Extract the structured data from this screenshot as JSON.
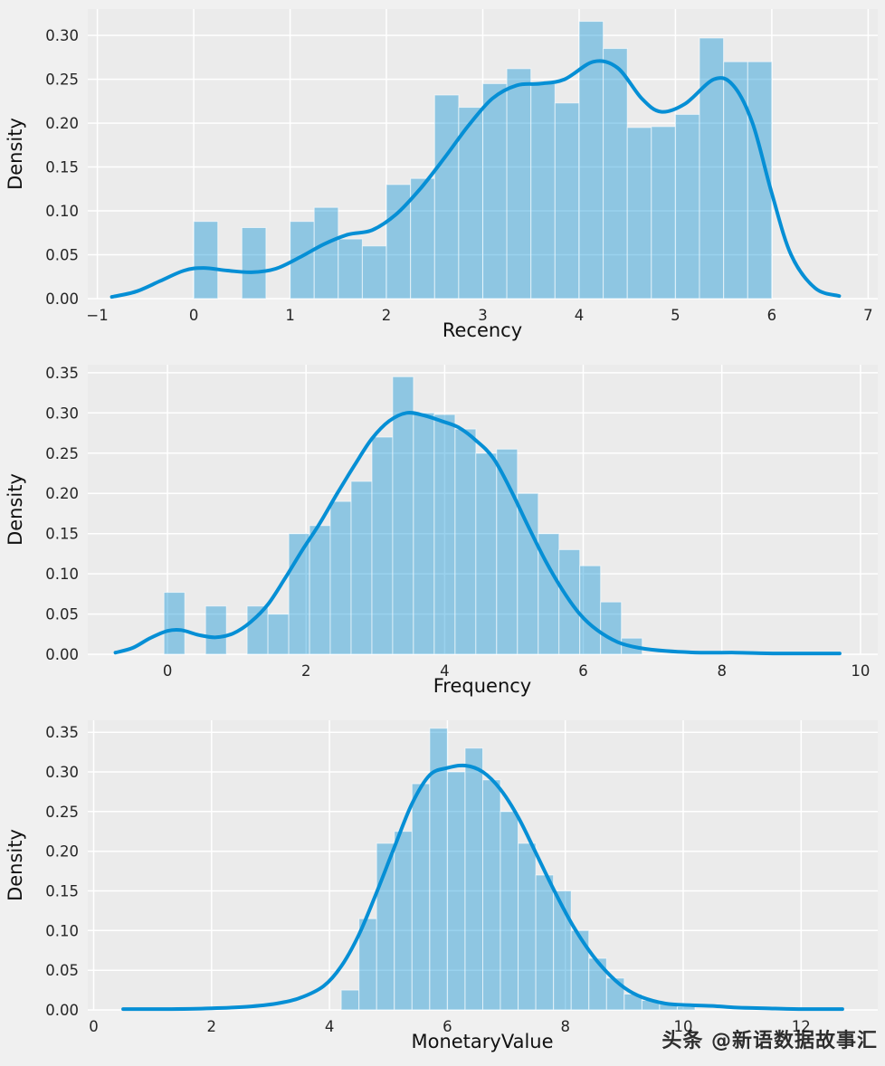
{
  "figure": {
    "bg": "#f0f0f0",
    "plot_bg": "#ebebeb",
    "grid_color": "#ffffff",
    "bar_color": "rgba(3,143,213,0.40)",
    "bar_edge": "rgba(255,255,255,0.6)",
    "line_color": "#068fd5",
    "tick_color": "#262626"
  },
  "watermark": {
    "text": "头条 @新语数据故事汇"
  },
  "chart_data": [
    {
      "type": "histogram (bar) + kde (line)",
      "title": "",
      "xlabel": "Recency",
      "ylabel": "Density",
      "xlim": [
        -1.1,
        7.1
      ],
      "ylim": [
        0,
        0.33
      ],
      "grid": true,
      "xticks": [
        -1,
        0,
        1,
        2,
        3,
        4,
        5,
        6,
        7
      ],
      "xtick_labels": [
        "−1",
        "0",
        "1",
        "2",
        "3",
        "4",
        "5",
        "6",
        "7"
      ],
      "yticks": [
        0,
        0.05,
        0.1,
        0.15,
        0.2,
        0.25,
        0.3
      ],
      "ytick_labels": [
        "0.00",
        "0.05",
        "0.10",
        "0.15",
        "0.20",
        "0.25",
        "0.30"
      ],
      "hist": {
        "bin_start": 0.0,
        "bin_width": 0.25,
        "heights": [
          0.088,
          0,
          0.081,
          0,
          0.088,
          0.104,
          0.068,
          0.06,
          0.13,
          0.137,
          0.232,
          0.218,
          0.245,
          0.262,
          0.245,
          0.223,
          0.316,
          0.285,
          0.195,
          0.196,
          0.21,
          0.297,
          0.27,
          0.27
        ]
      },
      "kde": {
        "x": [
          -0.85,
          -0.6,
          -0.35,
          -0.1,
          0.1,
          0.35,
          0.6,
          0.85,
          1.1,
          1.35,
          1.6,
          1.85,
          2.1,
          2.35,
          2.6,
          2.85,
          3.1,
          3.35,
          3.6,
          3.85,
          4.15,
          4.4,
          4.65,
          4.85,
          5.1,
          5.4,
          5.6,
          5.8,
          6.0,
          6.2,
          6.45,
          6.7
        ],
        "y": [
          0.002,
          0.008,
          0.02,
          0.032,
          0.035,
          0.032,
          0.03,
          0.034,
          0.047,
          0.062,
          0.073,
          0.078,
          0.096,
          0.125,
          0.16,
          0.197,
          0.228,
          0.243,
          0.245,
          0.25,
          0.27,
          0.263,
          0.228,
          0.213,
          0.222,
          0.25,
          0.243,
          0.2,
          0.12,
          0.05,
          0.012,
          0.003
        ]
      }
    },
    {
      "type": "histogram (bar) + kde (line)",
      "title": "",
      "xlabel": "Frequency",
      "ylabel": "Density",
      "xlim": [
        -1.15,
        10.25
      ],
      "ylim": [
        0,
        0.36
      ],
      "grid": true,
      "xticks": [
        0,
        2,
        4,
        6,
        8,
        10
      ],
      "xtick_labels": [
        "0",
        "2",
        "4",
        "6",
        "8",
        "10"
      ],
      "yticks": [
        0,
        0.05,
        0.1,
        0.15,
        0.2,
        0.25,
        0.3,
        0.35
      ],
      "ytick_labels": [
        "0.00",
        "0.05",
        "0.10",
        "0.15",
        "0.20",
        "0.25",
        "0.30",
        "0.35"
      ],
      "hist": {
        "bin_start": -0.05,
        "bin_width": 0.3,
        "heights": [
          0.077,
          0,
          0.06,
          0,
          0.06,
          0.05,
          0.15,
          0.16,
          0.19,
          0.215,
          0.27,
          0.345,
          0.3,
          0.298,
          0.28,
          0.25,
          0.255,
          0.2,
          0.15,
          0.13,
          0.11,
          0.065,
          0.02
        ]
      },
      "kde": {
        "x": [
          -0.75,
          -0.5,
          -0.25,
          0,
          0.2,
          0.45,
          0.7,
          0.95,
          1.2,
          1.45,
          1.7,
          1.95,
          2.2,
          2.45,
          2.7,
          2.95,
          3.2,
          3.45,
          3.7,
          3.95,
          4.2,
          4.45,
          4.7,
          4.95,
          5.2,
          5.45,
          5.7,
          5.95,
          6.2,
          6.5,
          6.8,
          7.2,
          7.7,
          8.2,
          8.8,
          9.4,
          9.7
        ],
        "y": [
          0.002,
          0.008,
          0.02,
          0.029,
          0.03,
          0.024,
          0.021,
          0.026,
          0.04,
          0.062,
          0.095,
          0.13,
          0.163,
          0.2,
          0.235,
          0.268,
          0.29,
          0.3,
          0.297,
          0.29,
          0.282,
          0.266,
          0.244,
          0.205,
          0.16,
          0.117,
          0.08,
          0.05,
          0.03,
          0.015,
          0.008,
          0.004,
          0.002,
          0.002,
          0.001,
          0.001,
          0.001
        ]
      }
    },
    {
      "type": "histogram (bar) + kde (line)",
      "title": "",
      "xlabel": "MonetaryValue",
      "ylabel": "Density",
      "xlim": [
        -0.1,
        13.3
      ],
      "ylim": [
        0,
        0.365
      ],
      "grid": true,
      "xticks": [
        0,
        2,
        4,
        6,
        8,
        10,
        12
      ],
      "xtick_labels": [
        "0",
        "2",
        "4",
        "6",
        "8",
        "10",
        "12"
      ],
      "yticks": [
        0,
        0.05,
        0.1,
        0.15,
        0.2,
        0.25,
        0.3,
        0.35
      ],
      "ytick_labels": [
        "0.00",
        "0.05",
        "0.10",
        "0.15",
        "0.20",
        "0.25",
        "0.30",
        "0.35"
      ],
      "hist": {
        "bin_start": 4.2,
        "bin_width": 0.3,
        "heights": [
          0.025,
          0.115,
          0.21,
          0.225,
          0.285,
          0.355,
          0.3,
          0.33,
          0.29,
          0.25,
          0.21,
          0.17,
          0.15,
          0.1,
          0.065,
          0.04,
          0.02,
          0.012,
          0.008,
          0.004
        ]
      },
      "kde": {
        "x": [
          0.5,
          1.2,
          2.0,
          2.6,
          3.1,
          3.5,
          3.9,
          4.2,
          4.5,
          4.8,
          5.1,
          5.4,
          5.7,
          6.0,
          6.3,
          6.6,
          6.9,
          7.2,
          7.5,
          7.8,
          8.1,
          8.4,
          8.7,
          9.0,
          9.3,
          9.7,
          10.1,
          10.5,
          10.9,
          11.4,
          12.0,
          12.7
        ],
        "y": [
          0.001,
          0.001,
          0.002,
          0.004,
          0.008,
          0.015,
          0.03,
          0.055,
          0.095,
          0.148,
          0.205,
          0.26,
          0.296,
          0.305,
          0.308,
          0.3,
          0.278,
          0.243,
          0.198,
          0.152,
          0.11,
          0.075,
          0.048,
          0.028,
          0.016,
          0.008,
          0.006,
          0.005,
          0.003,
          0.002,
          0.001,
          0.001
        ]
      }
    }
  ]
}
